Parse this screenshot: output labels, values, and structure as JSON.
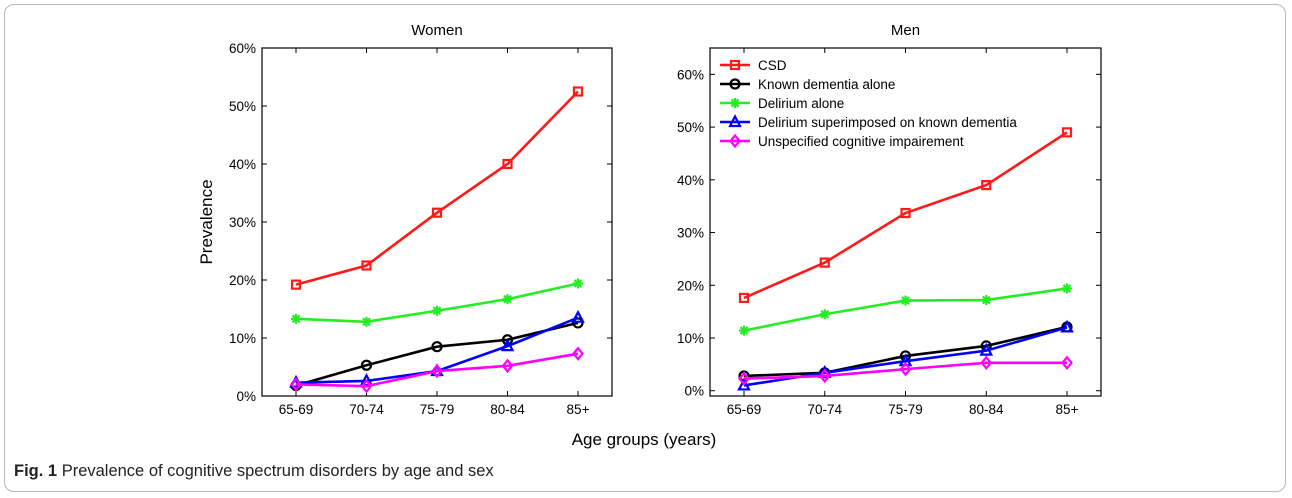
{
  "figure": {
    "common_xlabel": "Age groups (years)",
    "caption_label": "Fig. 1",
    "caption_text": "Prevalence of cognitive spectrum disorders by age and sex"
  },
  "series_styles": [
    {
      "name": "CSD",
      "color": "#ff1a1a",
      "marker": "square"
    },
    {
      "name": "Known dementia alone",
      "color": "#000000",
      "marker": "circle"
    },
    {
      "name": "Delirium alone",
      "color": "#22ee22",
      "marker": "star"
    },
    {
      "name": "Delirium superimposed on known dementia",
      "color": "#0000ff",
      "marker": "triangle"
    },
    {
      "name": "Unspecified cognitive impairement",
      "color": "#ff00ff",
      "marker": "diamond"
    }
  ],
  "chart_data": [
    {
      "type": "line",
      "title": "Women",
      "ylabel": "Prevalence",
      "xlabel": "",
      "categories": [
        "65-69",
        "70-74",
        "75-79",
        "80-84",
        "85+"
      ],
      "ylim": [
        0,
        0.6
      ],
      "yticks": [
        "0%",
        "10%",
        "20%",
        "30%",
        "40%",
        "50%",
        "60%"
      ],
      "legend": "none",
      "series": [
        {
          "name": "CSD",
          "values": [
            0.192,
            0.225,
            0.316,
            0.4,
            0.525
          ]
        },
        {
          "name": "Known dementia alone",
          "values": [
            0.018,
            0.053,
            0.085,
            0.097,
            0.126
          ]
        },
        {
          "name": "Delirium alone",
          "values": [
            0.133,
            0.128,
            0.147,
            0.167,
            0.194
          ]
        },
        {
          "name": "Delirium superimposed on known dementia",
          "values": [
            0.023,
            0.026,
            0.043,
            0.086,
            0.135
          ]
        },
        {
          "name": "Unspecified cognitive impairement",
          "values": [
            0.02,
            0.017,
            0.043,
            0.052,
            0.073
          ]
        }
      ]
    },
    {
      "type": "line",
      "title": "Men",
      "ylabel": "",
      "xlabel": "",
      "categories": [
        "65-69",
        "70-74",
        "75-79",
        "80-84",
        "85+"
      ],
      "ylim": [
        -0.01,
        0.65
      ],
      "yticks": [
        "0%",
        "10%",
        "20%",
        "30%",
        "40%",
        "50%",
        "60%"
      ],
      "legend": "top-left",
      "series": [
        {
          "name": "CSD",
          "values": [
            0.176,
            0.243,
            0.337,
            0.39,
            0.49
          ]
        },
        {
          "name": "Known dementia alone",
          "values": [
            0.028,
            0.034,
            0.066,
            0.085,
            0.121
          ]
        },
        {
          "name": "Delirium alone",
          "values": [
            0.114,
            0.145,
            0.171,
            0.172,
            0.194
          ]
        },
        {
          "name": "Delirium superimposed on known dementia",
          "values": [
            0.01,
            0.034,
            0.056,
            0.076,
            0.12
          ]
        },
        {
          "name": "Unspecified cognitive impairement",
          "values": [
            0.023,
            0.028,
            0.041,
            0.053,
            0.053
          ]
        }
      ]
    }
  ]
}
